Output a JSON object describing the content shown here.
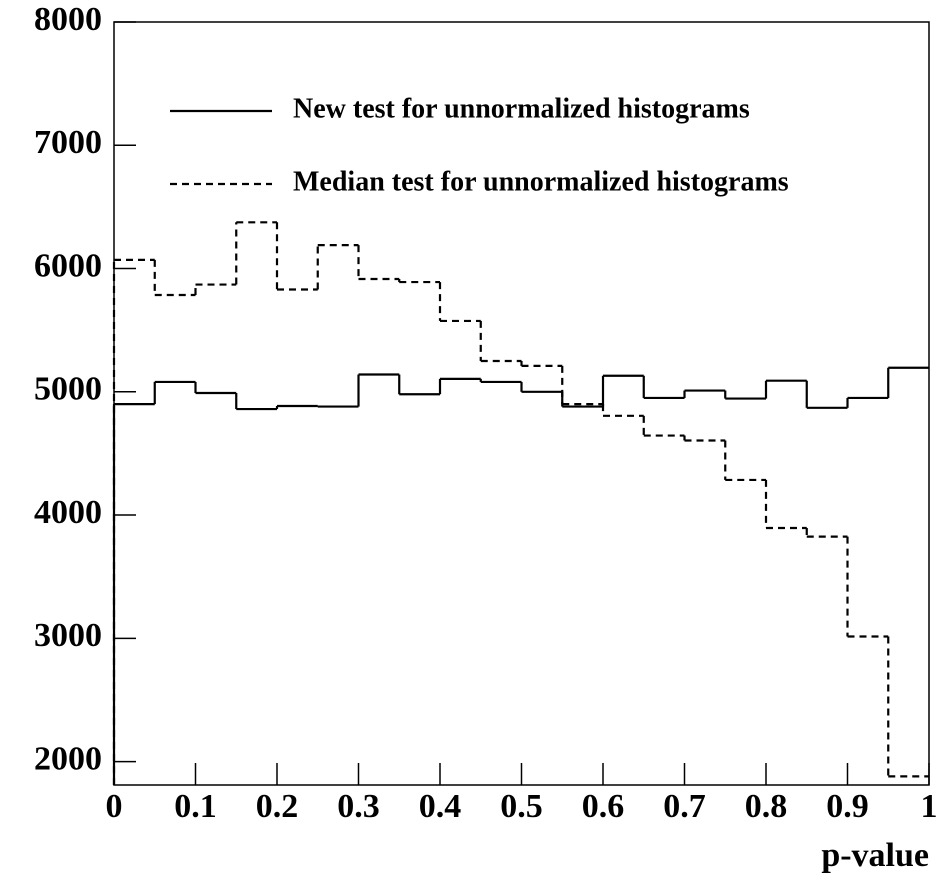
{
  "chart_data": {
    "type": "histogram",
    "xlabel": "p-value",
    "bins": [
      0,
      0.05,
      0.1,
      0.15,
      0.2,
      0.25,
      0.3,
      0.35,
      0.4,
      0.45,
      0.5,
      0.55,
      0.6,
      0.65,
      0.7,
      0.75,
      0.8,
      0.85,
      0.9,
      0.95,
      1
    ],
    "series": [
      {
        "name": "New test for unnormalized histograms",
        "color": "#000000",
        "style": "solid",
        "values": [
          4900,
          5080,
          4990,
          4860,
          4885,
          4880,
          5140,
          4980,
          5105,
          5080,
          5000,
          4880,
          5130,
          4950,
          5010,
          4945,
          5090,
          4870,
          4950,
          5195
        ]
      },
      {
        "name": "Median test for unnormalized histograms",
        "color": "#000000",
        "style": "dashed",
        "values": [
          6070,
          5785,
          5870,
          6375,
          5830,
          6190,
          5915,
          5890,
          5575,
          5250,
          5210,
          4900,
          4805,
          4645,
          4605,
          4285,
          3895,
          3825,
          3015,
          1880
        ]
      }
    ],
    "xlim": [
      0,
      1
    ],
    "xticks": [
      0,
      0.1,
      0.2,
      0.3,
      0.4,
      0.5,
      0.6,
      0.7,
      0.8,
      0.9,
      1
    ],
    "ylim": [
      1810,
      8000
    ],
    "yticks": [
      2000,
      3000,
      4000,
      5000,
      6000,
      7000,
      8000
    ]
  }
}
